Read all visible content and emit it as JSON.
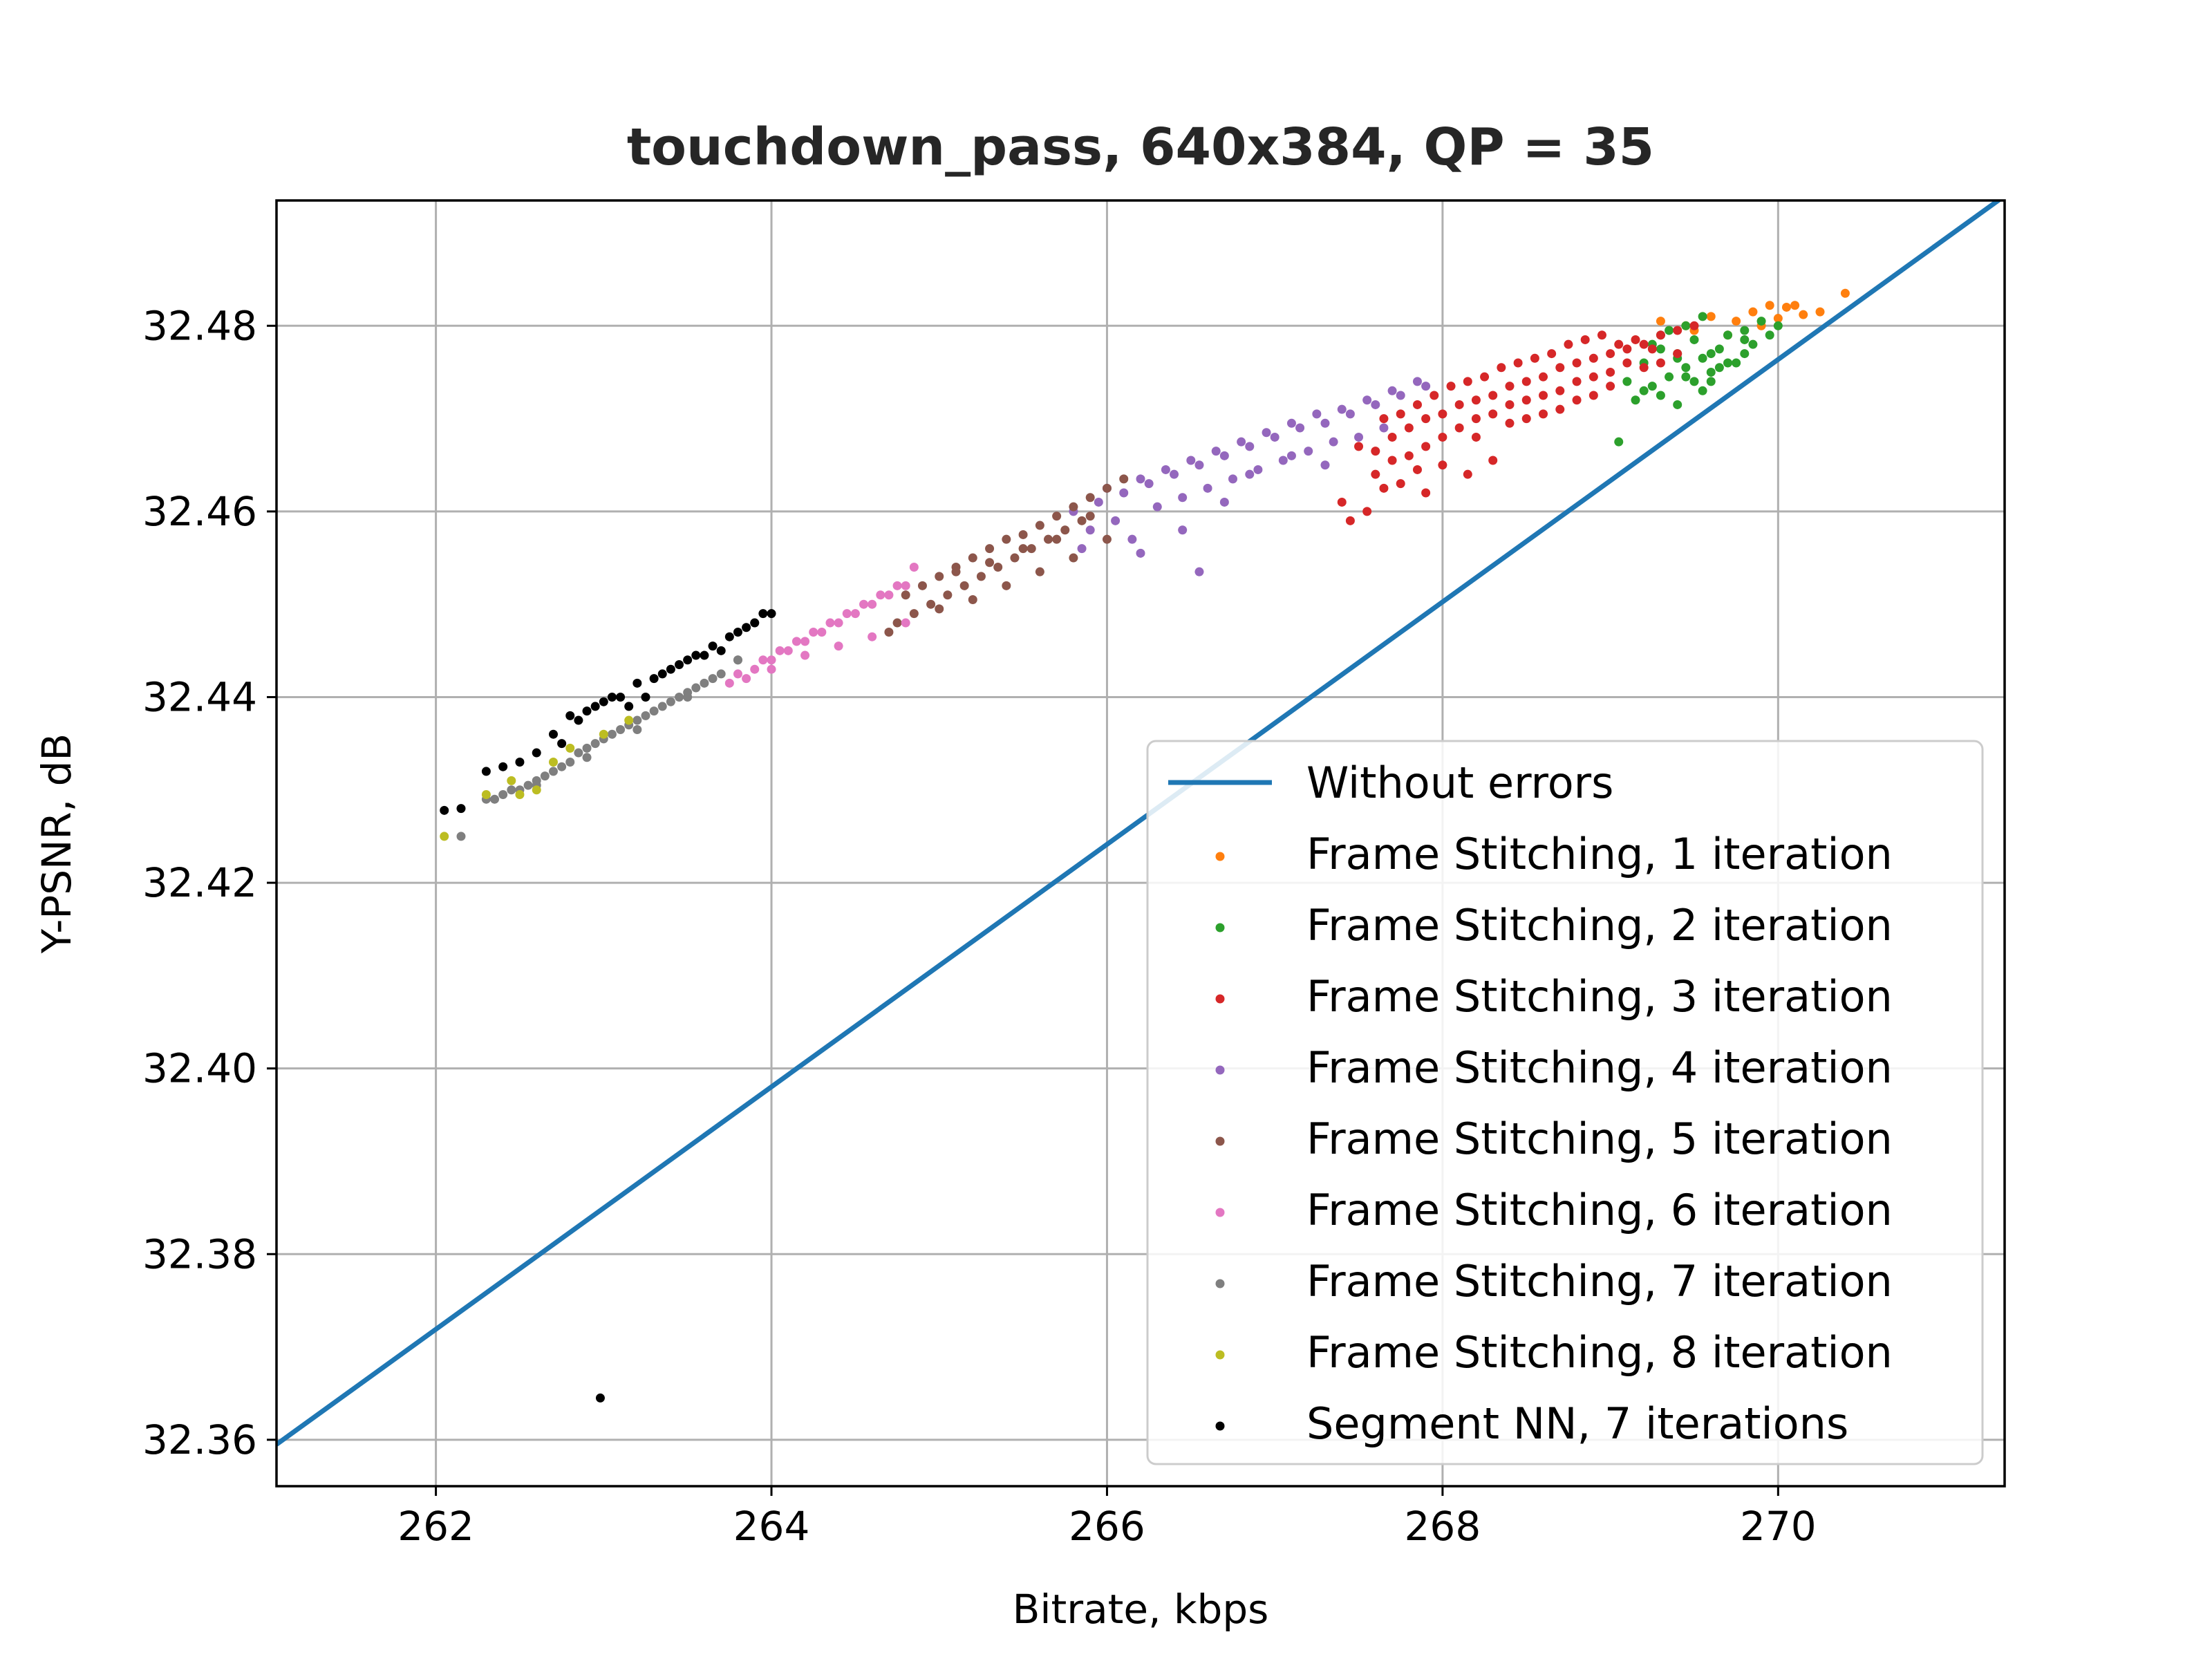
{
  "chart_data": {
    "type": "scatter",
    "title": "touchdown_pass, 640x384, QP = 35",
    "xlabel": "Bitrate, kbps",
    "ylabel": "Y-PSNR, dB",
    "xlim": [
      261.05,
      271.35
    ],
    "ylim": [
      32.355,
      32.4935
    ],
    "xticks": [
      262,
      264,
      266,
      268,
      270
    ],
    "yticks": [
      32.36,
      32.38,
      32.4,
      32.42,
      32.44,
      32.46,
      32.48
    ],
    "xtick_labels": [
      "262",
      "264",
      "266",
      "268",
      "270"
    ],
    "ytick_labels": [
      "32.36",
      "32.38",
      "32.40",
      "32.42",
      "32.44",
      "32.46",
      "32.48"
    ],
    "grid": true,
    "legend_position": "lower-right",
    "series": [
      {
        "name": "Without errors",
        "type": "line",
        "color": "#1f77b4",
        "x": [
          261.05,
          271.35
        ],
        "y": [
          32.3595,
          32.494
        ]
      },
      {
        "name": "Frame Stitching, 1 iteration",
        "type": "scatter",
        "color": "#ff7f0e",
        "x": [
          269.3,
          269.45,
          269.6,
          269.75,
          269.85,
          269.95,
          270.05,
          270.15,
          270.25,
          270.4,
          269.5,
          269.7,
          270.0,
          269.9,
          270.1
        ],
        "y": [
          32.4805,
          32.48,
          32.481,
          32.4805,
          32.4815,
          32.4822,
          32.482,
          32.4812,
          32.4815,
          32.4835,
          32.4795,
          32.479,
          32.4808,
          32.48,
          32.4822
        ]
      },
      {
        "name": "Frame Stitching, 2 iteration",
        "type": "scatter",
        "color": "#2ca02c",
        "x": [
          269.1,
          269.2,
          269.3,
          269.4,
          269.5,
          269.6,
          269.7,
          269.8,
          269.9,
          270.0,
          269.15,
          269.25,
          269.35,
          269.45,
          269.55,
          269.65,
          269.75,
          269.85,
          269.05,
          269.2,
          269.3,
          269.4,
          269.5,
          269.6,
          269.7,
          269.8,
          269.35,
          269.45,
          269.55,
          269.25,
          269.4,
          269.6,
          269.8,
          269.95,
          269.65,
          269.55,
          269.3,
          269.45
        ],
        "y": [
          32.474,
          32.476,
          32.4775,
          32.4765,
          32.4785,
          32.477,
          32.479,
          32.4795,
          32.4805,
          32.48,
          32.472,
          32.4735,
          32.4745,
          32.4755,
          32.4765,
          32.4775,
          32.476,
          32.478,
          32.4675,
          32.473,
          32.4725,
          32.4715,
          32.474,
          32.475,
          32.476,
          32.477,
          32.4795,
          32.48,
          32.481,
          32.478,
          32.477,
          32.474,
          32.4785,
          32.479,
          32.4755,
          32.473,
          32.479,
          32.4745
        ]
      },
      {
        "name": "Frame Stitching, 3 iteration",
        "type": "scatter",
        "color": "#d62728",
        "x": [
          267.6,
          267.7,
          267.8,
          267.9,
          268.0,
          268.1,
          268.2,
          268.3,
          268.4,
          268.5,
          268.6,
          268.7,
          268.8,
          268.9,
          269.0,
          269.1,
          269.2,
          269.3,
          269.4,
          269.5,
          267.65,
          267.75,
          267.85,
          267.95,
          268.05,
          268.15,
          268.25,
          268.35,
          268.45,
          268.55,
          268.65,
          268.75,
          268.85,
          268.95,
          269.05,
          269.15,
          269.25,
          267.7,
          267.8,
          267.9,
          268.0,
          268.1,
          268.2,
          268.3,
          268.4,
          268.5,
          268.6,
          268.7,
          268.8,
          268.9,
          269.0,
          269.1,
          267.5,
          267.6,
          267.75,
          267.85,
          268.0,
          268.2,
          268.4,
          268.6,
          268.8,
          269.0,
          269.2,
          269.4,
          267.45,
          267.55,
          267.9,
          268.15,
          267.4,
          267.65,
          268.3,
          268.5,
          268.7,
          268.9,
          269.3
        ],
        "y": [
          32.4665,
          32.468,
          32.469,
          32.47,
          32.4705,
          32.4715,
          32.472,
          32.4725,
          32.4735,
          32.474,
          32.4745,
          32.4755,
          32.476,
          32.4765,
          32.477,
          32.4775,
          32.478,
          32.479,
          32.4795,
          32.48,
          32.47,
          32.4705,
          32.4715,
          32.4725,
          32.4735,
          32.474,
          32.4745,
          32.4755,
          32.476,
          32.4765,
          32.477,
          32.478,
          32.4785,
          32.479,
          32.478,
          32.4785,
          32.4775,
          32.4655,
          32.466,
          32.467,
          32.468,
          32.469,
          32.47,
          32.4705,
          32.4715,
          32.472,
          32.4725,
          32.473,
          32.474,
          32.4745,
          32.475,
          32.476,
          32.467,
          32.464,
          32.463,
          32.4645,
          32.465,
          32.468,
          32.4695,
          32.4705,
          32.472,
          32.4735,
          32.4755,
          32.477,
          32.459,
          32.46,
          32.462,
          32.464,
          32.461,
          32.4625,
          32.4655,
          32.47,
          32.471,
          32.4725,
          32.476
        ]
      },
      {
        "name": "Frame Stitching, 4 iteration",
        "type": "scatter",
        "color": "#9467bd",
        "x": [
          265.8,
          265.95,
          266.1,
          266.25,
          266.4,
          266.55,
          266.7,
          266.85,
          267.0,
          267.15,
          267.3,
          267.45,
          267.6,
          267.75,
          267.9,
          266.0,
          266.2,
          266.35,
          266.5,
          266.65,
          266.8,
          266.95,
          267.1,
          267.25,
          267.4,
          267.55,
          267.7,
          267.85,
          265.9,
          266.05,
          266.3,
          266.45,
          266.6,
          266.75,
          266.9,
          267.05,
          267.2,
          267.35,
          267.5,
          267.65,
          266.15,
          266.55,
          266.2,
          266.45,
          266.85,
          267.1,
          267.3,
          266.7,
          265.85
        ],
        "y": [
          32.46,
          32.461,
          32.462,
          32.463,
          32.464,
          32.465,
          32.466,
          32.467,
          32.468,
          32.469,
          32.4695,
          32.4705,
          32.4715,
          32.4725,
          32.4735,
          32.4625,
          32.4635,
          32.4645,
          32.4655,
          32.4665,
          32.4675,
          32.4685,
          32.4695,
          32.4705,
          32.471,
          32.472,
          32.473,
          32.474,
          32.458,
          32.459,
          32.4605,
          32.4615,
          32.4625,
          32.4635,
          32.4645,
          32.4655,
          32.4665,
          32.4675,
          32.468,
          32.469,
          32.457,
          32.4535,
          32.4555,
          32.458,
          32.464,
          32.466,
          32.465,
          32.461,
          32.456
        ]
      },
      {
        "name": "Frame Stitching, 5 iteration",
        "type": "scatter",
        "color": "#8c564b",
        "x": [
          264.8,
          264.9,
          265.0,
          265.1,
          265.2,
          265.3,
          265.4,
          265.5,
          265.6,
          265.7,
          265.8,
          265.9,
          266.0,
          266.1,
          264.85,
          264.95,
          265.05,
          265.15,
          265.25,
          265.35,
          265.45,
          265.55,
          265.65,
          265.75,
          265.85,
          264.75,
          265.0,
          265.2,
          265.4,
          265.6,
          265.8,
          266.0,
          265.1,
          265.3,
          265.5,
          265.7,
          265.9,
          264.7
        ],
        "y": [
          32.451,
          32.452,
          32.453,
          32.454,
          32.455,
          32.456,
          32.457,
          32.4575,
          32.4585,
          32.4595,
          32.4605,
          32.4615,
          32.4625,
          32.4635,
          32.449,
          32.45,
          32.451,
          32.452,
          32.453,
          32.454,
          32.455,
          32.456,
          32.457,
          32.458,
          32.459,
          32.448,
          32.4495,
          32.4505,
          32.452,
          32.4535,
          32.455,
          32.457,
          32.4535,
          32.4545,
          32.456,
          32.457,
          32.4595,
          32.447
        ]
      },
      {
        "name": "Frame Stitching, 6 iteration",
        "type": "scatter",
        "color": "#e377c2",
        "x": [
          263.9,
          264.0,
          264.1,
          264.2,
          264.3,
          264.4,
          264.5,
          264.6,
          264.7,
          264.8,
          263.95,
          264.05,
          264.15,
          264.25,
          264.35,
          264.45,
          264.55,
          264.65,
          264.75,
          264.85,
          263.85,
          264.0,
          264.2,
          264.4,
          264.6,
          264.8,
          263.8,
          263.75
        ],
        "y": [
          32.443,
          32.444,
          32.445,
          32.446,
          32.447,
          32.448,
          32.449,
          32.45,
          32.451,
          32.452,
          32.444,
          32.445,
          32.446,
          32.447,
          32.448,
          32.449,
          32.45,
          32.451,
          32.452,
          32.454,
          32.442,
          32.443,
          32.4445,
          32.4455,
          32.4465,
          32.448,
          32.4425,
          32.4415
        ]
      },
      {
        "name": "Frame Stitching, 7 iteration",
        "type": "scatter",
        "color": "#7f7f7f",
        "x": [
          262.3,
          262.4,
          262.5,
          262.6,
          262.7,
          262.8,
          262.9,
          263.0,
          263.1,
          263.2,
          263.3,
          263.4,
          263.5,
          263.6,
          263.7,
          263.8,
          262.45,
          262.55,
          262.65,
          262.75,
          262.85,
          262.95,
          263.05,
          263.15,
          263.25,
          263.35,
          263.45,
          263.55,
          263.65,
          262.15,
          262.35,
          262.6,
          262.9,
          263.2,
          263.5,
          263.8,
          263.9
        ],
        "y": [
          32.429,
          32.4295,
          32.43,
          32.431,
          32.432,
          32.433,
          32.4345,
          32.4355,
          32.4365,
          32.4375,
          32.4385,
          32.4395,
          32.4405,
          32.4415,
          32.4425,
          32.444,
          32.43,
          32.4305,
          32.4315,
          32.4325,
          32.434,
          32.435,
          32.436,
          32.437,
          32.438,
          32.439,
          32.44,
          32.441,
          32.442,
          32.425,
          32.429,
          32.4305,
          32.4335,
          32.4365,
          32.44,
          32.444,
          32.448
        ]
      },
      {
        "name": "Frame Stitching, 8 iteration",
        "type": "scatter",
        "color": "#bcbd22",
        "x": [
          262.05,
          262.3,
          262.45,
          262.6,
          262.8,
          263.0,
          263.15,
          262.5,
          262.7
        ],
        "y": [
          32.425,
          32.4295,
          32.431,
          32.43,
          32.4345,
          32.436,
          32.4375,
          32.4295,
          32.433
        ]
      },
      {
        "name": "Segment NN, 7 iterations",
        "type": "scatter",
        "color": "#000000",
        "x": [
          262.05,
          262.15,
          262.3,
          262.4,
          262.5,
          262.6,
          262.7,
          262.8,
          262.9,
          263.0,
          263.1,
          263.2,
          263.3,
          263.4,
          263.5,
          263.6,
          263.7,
          263.8,
          263.9,
          264.0,
          262.75,
          262.85,
          262.95,
          263.05,
          263.15,
          263.25,
          263.35,
          263.45,
          263.55,
          263.65,
          263.75,
          263.85,
          263.95,
          262.98
        ],
        "y": [
          32.4278,
          32.428,
          32.432,
          32.4325,
          32.433,
          32.434,
          32.436,
          32.438,
          32.4385,
          32.4395,
          32.44,
          32.4415,
          32.442,
          32.443,
          32.444,
          32.4445,
          32.445,
          32.447,
          32.448,
          32.449,
          32.435,
          32.4375,
          32.439,
          32.44,
          32.439,
          32.44,
          32.4425,
          32.4435,
          32.4445,
          32.4455,
          32.4465,
          32.4475,
          32.449,
          32.3645
        ]
      }
    ]
  }
}
